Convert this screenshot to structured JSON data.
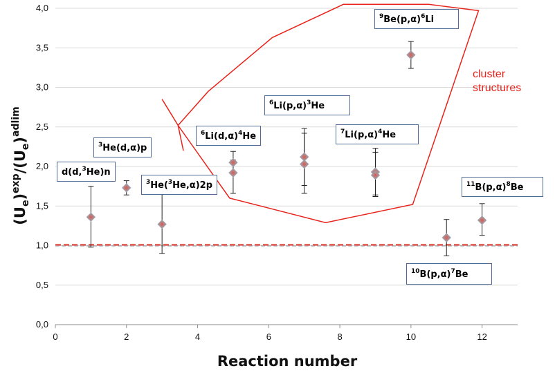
{
  "chart_data": {
    "type": "scatter",
    "xlabel": "Reaction number",
    "ylabel": {
      "base1": "(U",
      "sub1": "e",
      "close1": ")",
      "sup1": "exp",
      "slash": "/(U",
      "sub2": "e",
      "close2": ")",
      "sup2": "adlim"
    },
    "xlim": [
      0,
      13
    ],
    "ylim": [
      0,
      4
    ],
    "x_ticks": [
      "0",
      "2",
      "4",
      "6",
      "8",
      "10",
      "12"
    ],
    "y_ticks": [
      "0,0",
      "0,5",
      "1,0",
      "1,5",
      "2,0",
      "2,5",
      "3,0",
      "3,5",
      "4,0"
    ],
    "reference_line_y": 1.01,
    "points": [
      {
        "x": 1,
        "y": 1.36,
        "lo": 0.98,
        "hi": 1.75
      },
      {
        "x": 2,
        "y": 1.73,
        "lo": 1.64,
        "hi": 1.82
      },
      {
        "x": 3,
        "y": 1.27,
        "lo": 0.9,
        "hi": 1.65
      },
      {
        "x": 5,
        "y": 2.05,
        "lo": 1.9,
        "hi": 2.19
      },
      {
        "x": 5,
        "y": 1.92,
        "lo": 1.66,
        "hi": 2.08
      },
      {
        "x": 7,
        "y": 2.12,
        "lo": 1.76,
        "hi": 2.48
      },
      {
        "x": 7,
        "y": 2.03,
        "lo": 1.66,
        "hi": 2.42
      },
      {
        "x": 9,
        "y": 1.93,
        "lo": 1.64,
        "hi": 2.23
      },
      {
        "x": 9,
        "y": 1.89,
        "lo": 1.62,
        "hi": 2.18
      },
      {
        "x": 10,
        "y": 3.41,
        "lo": 3.24,
        "hi": 3.58
      },
      {
        "x": 11,
        "y": 1.1,
        "lo": 0.87,
        "hi": 1.33
      },
      {
        "x": 12,
        "y": 1.32,
        "lo": 1.13,
        "hi": 1.53
      }
    ],
    "cluster_region": {
      "label_line1": "cluster",
      "label_line2": "structures",
      "polygon": [
        [
          3.45,
          2.52
        ],
        [
          4.3,
          2.95
        ],
        [
          6.1,
          3.63
        ],
        [
          8.1,
          4.05
        ],
        [
          10.5,
          4.05
        ],
        [
          11.9,
          3.97
        ],
        [
          10.05,
          1.52
        ],
        [
          7.6,
          1.29
        ],
        [
          4.9,
          1.6
        ],
        [
          3.45,
          2.52
        ]
      ],
      "hook": [
        [
          3.0,
          2.85
        ],
        [
          3.45,
          2.52
        ],
        [
          3.6,
          2.2
        ]
      ]
    },
    "annotations": [
      {
        "name": "ddHe",
        "parts": [
          "d(d,",
          "3",
          "He)n"
        ]
      },
      {
        "name": "HedAlpha",
        "parts": [
          "",
          "3",
          "He(d,α)p"
        ]
      },
      {
        "name": "HeHe",
        "parts": [
          "",
          "3",
          "He(",
          "3",
          "He,α)2p"
        ]
      },
      {
        "name": "Li6dAlpha",
        "parts": [
          "",
          "6",
          "Li(d,α)",
          "4",
          "He"
        ]
      },
      {
        "name": "Li6pAlpha",
        "parts": [
          "",
          "6",
          "Li(p,α)",
          "3",
          "He"
        ]
      },
      {
        "name": "Li7pAlpha",
        "parts": [
          "",
          "7",
          "Li(p,α)",
          "4",
          "He"
        ]
      },
      {
        "name": "Be9pAlpha",
        "parts": [
          "",
          "9",
          "Be(p,α)",
          "6",
          "Li"
        ]
      },
      {
        "name": "B11pAlpha",
        "parts": [
          "",
          "11",
          "B(p,α)",
          "8",
          "Be"
        ]
      },
      {
        "name": "B10pAlpha",
        "parts": [
          "",
          "10",
          "B(p,α)",
          "7",
          "Be"
        ]
      }
    ],
    "colors": {
      "marker": "#9aa0ad",
      "marker_center": "#d1605a",
      "reference_line": "#e05a52",
      "region": "#e8231c"
    }
  }
}
